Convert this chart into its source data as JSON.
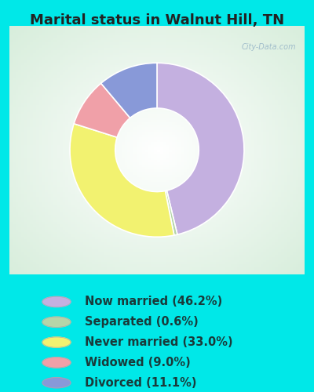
{
  "title": "Marital status in Walnut Hill, TN",
  "slices": [
    46.2,
    0.6,
    33.0,
    9.0,
    11.1
  ],
  "labels": [
    "Now married (46.2%)",
    "Separated (0.6%)",
    "Never married (33.0%)",
    "Widowed (9.0%)",
    "Divorced (11.1%)"
  ],
  "colors": [
    "#c4b0e0",
    "#b5d5a8",
    "#f2f270",
    "#f0a0a8",
    "#8899d8"
  ],
  "bg_outer": "#00e8e8",
  "bg_chart": "#d8eedc",
  "title_fontsize": 13,
  "legend_fontsize": 10.5,
  "title_color": "#222222",
  "legend_text_color": "#1a3a3a",
  "watermark": "City-Data.com"
}
